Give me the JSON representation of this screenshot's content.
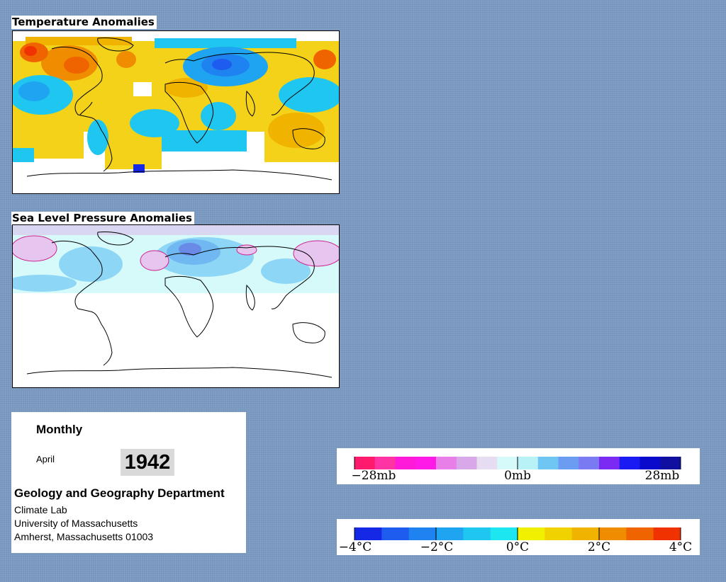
{
  "temperature_panel": {
    "title": "Temperature Anomalies"
  },
  "pressure_panel": {
    "title": "Sea Level Pressure Anomalies"
  },
  "info": {
    "period": "Monthly",
    "month": "April",
    "year": "1942",
    "department": "Geology and Geography Department",
    "lab": "Climate Lab",
    "university": "University of Massachusetts",
    "address": "Amherst, Massachusetts 01003"
  },
  "pressure_legend": {
    "labels": [
      "−28mb",
      "0mb",
      "28mb"
    ],
    "colors": [
      "#ff1a6e",
      "#ff33a3",
      "#ff1ad9",
      "#ff1ae8",
      "#e87ee8",
      "#d9a8e8",
      "#e6ddf2",
      "#d6fafa",
      "#b8f2f6",
      "#6fc6f2",
      "#6a9cf2",
      "#7a7af2",
      "#7a2af2",
      "#1a1af2",
      "#0a0acc",
      "#1010a0"
    ],
    "range": [
      -28,
      28
    ]
  },
  "temperature_legend": {
    "labels": [
      "−4°C",
      "−2°C",
      "0°C",
      "2°C",
      "4°C"
    ],
    "colors": [
      "#1428e6",
      "#1e5cf0",
      "#1e82f0",
      "#1ea4f0",
      "#1ec6f0",
      "#1ee6f0",
      "#f0f000",
      "#f0d200",
      "#f0b400",
      "#f08c00",
      "#f06400",
      "#f03200"
    ],
    "range": [
      -4,
      4
    ]
  }
}
